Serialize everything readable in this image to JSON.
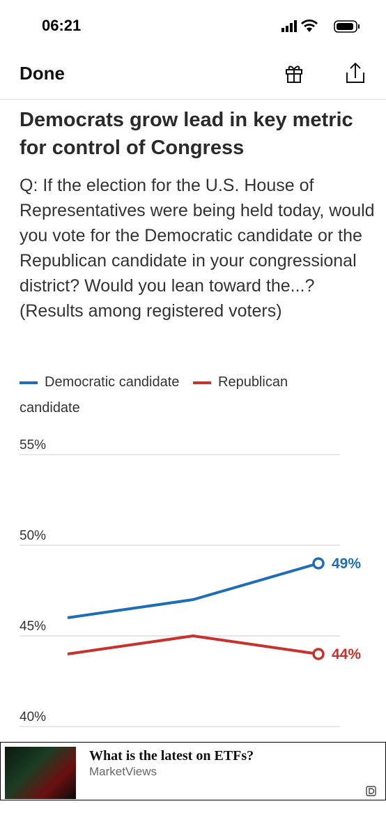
{
  "status_bar": {
    "time": "06:21"
  },
  "nav": {
    "done": "Done"
  },
  "chart_data": {
    "type": "line",
    "title": "Democrats grow lead in key metric for control of Congress",
    "subtitle": "Q: If the election for the U.S. House of Representatives were being held today, would you vote for the Democratic candidate or the Republican candidate in your congressional district? Would you lean toward the...? (Results among registered voters)",
    "categories": [
      null,
      null,
      null
    ],
    "series": [
      {
        "name": "Democratic candidate",
        "color": "#1f6db5",
        "values": [
          46,
          47,
          49
        ],
        "value_labels": [
          null,
          null,
          "49%"
        ]
      },
      {
        "name": "Republican candidate",
        "color": "#c8312c",
        "values": [
          44,
          45,
          44
        ],
        "value_labels": [
          null,
          null,
          "44%"
        ]
      }
    ],
    "ylim": [
      40,
      55
    ],
    "yticks": [
      {
        "value": 40,
        "label": "40%"
      },
      {
        "value": 45,
        "label": "45%"
      },
      {
        "value": 50,
        "label": "50%"
      },
      {
        "value": 55,
        "label": "55%"
      }
    ],
    "grid": true
  },
  "ad": {
    "headline": "What is the latest on ETFs?",
    "source": "MarketViews"
  }
}
